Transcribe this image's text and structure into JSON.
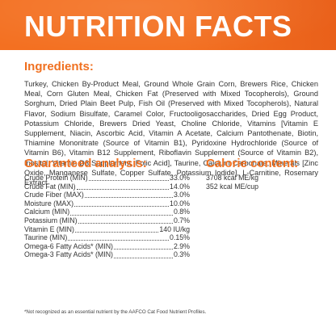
{
  "header": {
    "title": "NUTRITION FACTS",
    "bg_color": "#f37021",
    "text_color": "#ffffff"
  },
  "ingredients": {
    "heading": "Ingredients:",
    "text": "Turkey, Chicken By-Product Meal, Ground Whole Grain Corn, Brewers Rice, Chicken Meal, Corn Gluten Meal, Chicken Fat (Preserved with Mixed Tocopherols), Ground Sorghum, Dried Plain Beet Pulp, Fish Oil (Preserved with Mixed Tocopherols), Natural Flavor, Sodium Bisulfate, Caramel Color, Fructooligosaccharides, Dried Egg Product, Potassium Chloride, Brewers Dried Yeast, Choline Chloride, Vitamins [Vitamin E Supplement, Niacin, Ascorbic Acid, Vitamin A Acetate, Calcium Pantothenate, Biotin, Thiamine Mononitrate (Source of Vitamin B1), Pyridoxine Hydrochloride (Source of Vitamin B6), Vitamin B12 Supplement, Riboflavin Supplement (Source of Vitamin B2), Inositol, Vitamin D3 Supplement, Folic Acid], Taurine, Calcium Carbonate, Minerals [Zinc Oxide, Manganese Sulfate, Copper Sulfate, Potassium Iodide], L-Carnitine, Rosemary Extract"
  },
  "guaranteed_analysis": {
    "heading": "Guaranteed analysis:",
    "rows": [
      {
        "label": "Crude Protein (MIN)",
        "value": "33.0%"
      },
      {
        "label": "Crude Fat (MIN)",
        "value": "14.0%"
      },
      {
        "label": "Crude Fiber (MAX)",
        "value": "3.0%"
      },
      {
        "label": "Moisture (MAX)",
        "value": "10.0%"
      },
      {
        "label": "Calcium (MIN)",
        "value": "0.8%"
      },
      {
        "label": "Potassium (MIN)",
        "value": "0.7%"
      },
      {
        "label": "Vitamin E (MIN)",
        "value": "140 IU/kg"
      },
      {
        "label": "Taurine (MIN)",
        "value": "0.15%"
      },
      {
        "label": "Omega-6 Fatty Acids* (MIN)",
        "value": "2.9%"
      },
      {
        "label": "Omega-3 Fatty Acids* (MIN)",
        "value": "0.3%"
      }
    ]
  },
  "calorie_content": {
    "heading": "Calorie content:",
    "lines": [
      "3708 kcal ME/kg",
      "352 kcal ME/cup"
    ]
  },
  "footnote": "*Not recognized as an essential nutrient by the AAFCO Cat Food Nutrient Profiles.",
  "accent_color": "#f07020"
}
